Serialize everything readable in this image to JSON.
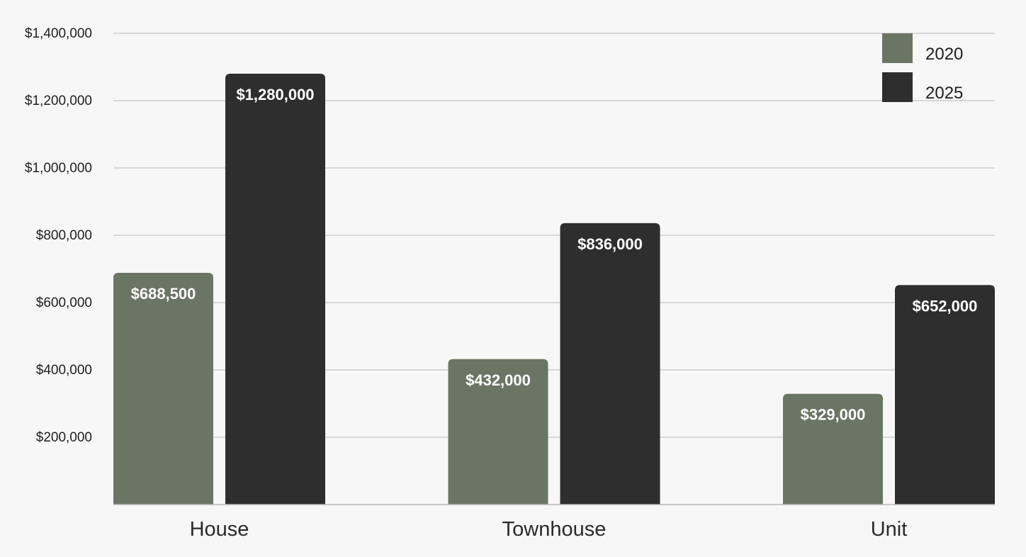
{
  "chart_data": {
    "type": "bar",
    "title": "",
    "xlabel": "",
    "ylabel": "",
    "categories": [
      "House",
      "Townhouse",
      "Unit"
    ],
    "series": [
      {
        "name": "2020",
        "color": "#6b7563",
        "values": [
          688500,
          432000,
          329000
        ],
        "labels": [
          "$688,500",
          "$432,000",
          "$329,000"
        ]
      },
      {
        "name": "2025",
        "color": "#2e2e2e",
        "values": [
          1280000,
          836000,
          652000
        ],
        "labels": [
          "$1,280,000",
          "$836,000",
          "$652,000"
        ]
      }
    ],
    "ylim": [
      0,
      1400000
    ],
    "yticks": [
      200000,
      400000,
      600000,
      800000,
      1000000,
      1200000,
      1400000
    ],
    "ytick_labels": [
      "$200,000",
      "$400,000",
      "$600,000",
      "$800,000",
      "$1,000,000",
      "$1,200,000",
      "$1,400,000"
    ],
    "grid": true,
    "legend_position": "top-right"
  }
}
